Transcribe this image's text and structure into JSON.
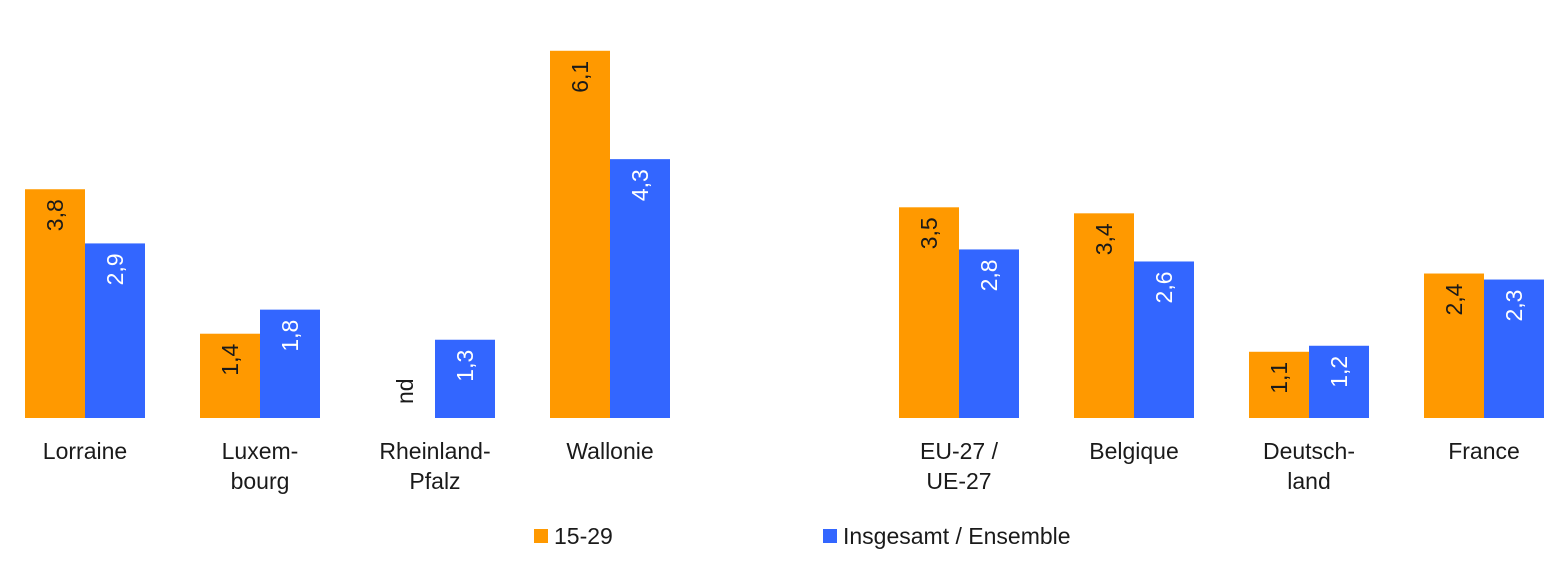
{
  "chart_data": {
    "type": "bar",
    "ylim": [
      0,
      6.5
    ],
    "grid": false,
    "legend_position": "bottom",
    "categories": [
      {
        "label_lines": [
          "Lorraine"
        ]
      },
      {
        "label_lines": [
          "Luxem-",
          "bourg"
        ]
      },
      {
        "label_lines": [
          "Rheinland-",
          "Pfalz"
        ]
      },
      {
        "label_lines": [
          "Wallonie"
        ]
      },
      {
        "label_lines": [
          "EU-27 /",
          "UE-27"
        ]
      },
      {
        "label_lines": [
          "Belgique"
        ]
      },
      {
        "label_lines": [
          "Deutsch-",
          "land"
        ]
      },
      {
        "label_lines": [
          "France"
        ]
      }
    ],
    "series": [
      {
        "name": "15-29",
        "color": "#FF9900",
        "label_color": "#1a1a1a",
        "values": [
          3.8,
          1.4,
          null,
          6.1,
          3.5,
          3.4,
          1.1,
          2.4
        ],
        "value_labels": [
          "3,8",
          "1,4",
          "nd",
          "6,1",
          "3,5",
          "3,4",
          "1,1",
          "2,4"
        ]
      },
      {
        "name": "Insgesamt / Ensemble",
        "color": "#3366FF",
        "label_color": "#ffffff",
        "values": [
          2.9,
          1.8,
          1.3,
          4.3,
          2.8,
          2.6,
          1.2,
          2.3
        ],
        "value_labels": [
          "2,9",
          "1,8",
          "1,3",
          "4,3",
          "2,8",
          "2,6",
          "1,2",
          "2,3"
        ]
      }
    ]
  }
}
